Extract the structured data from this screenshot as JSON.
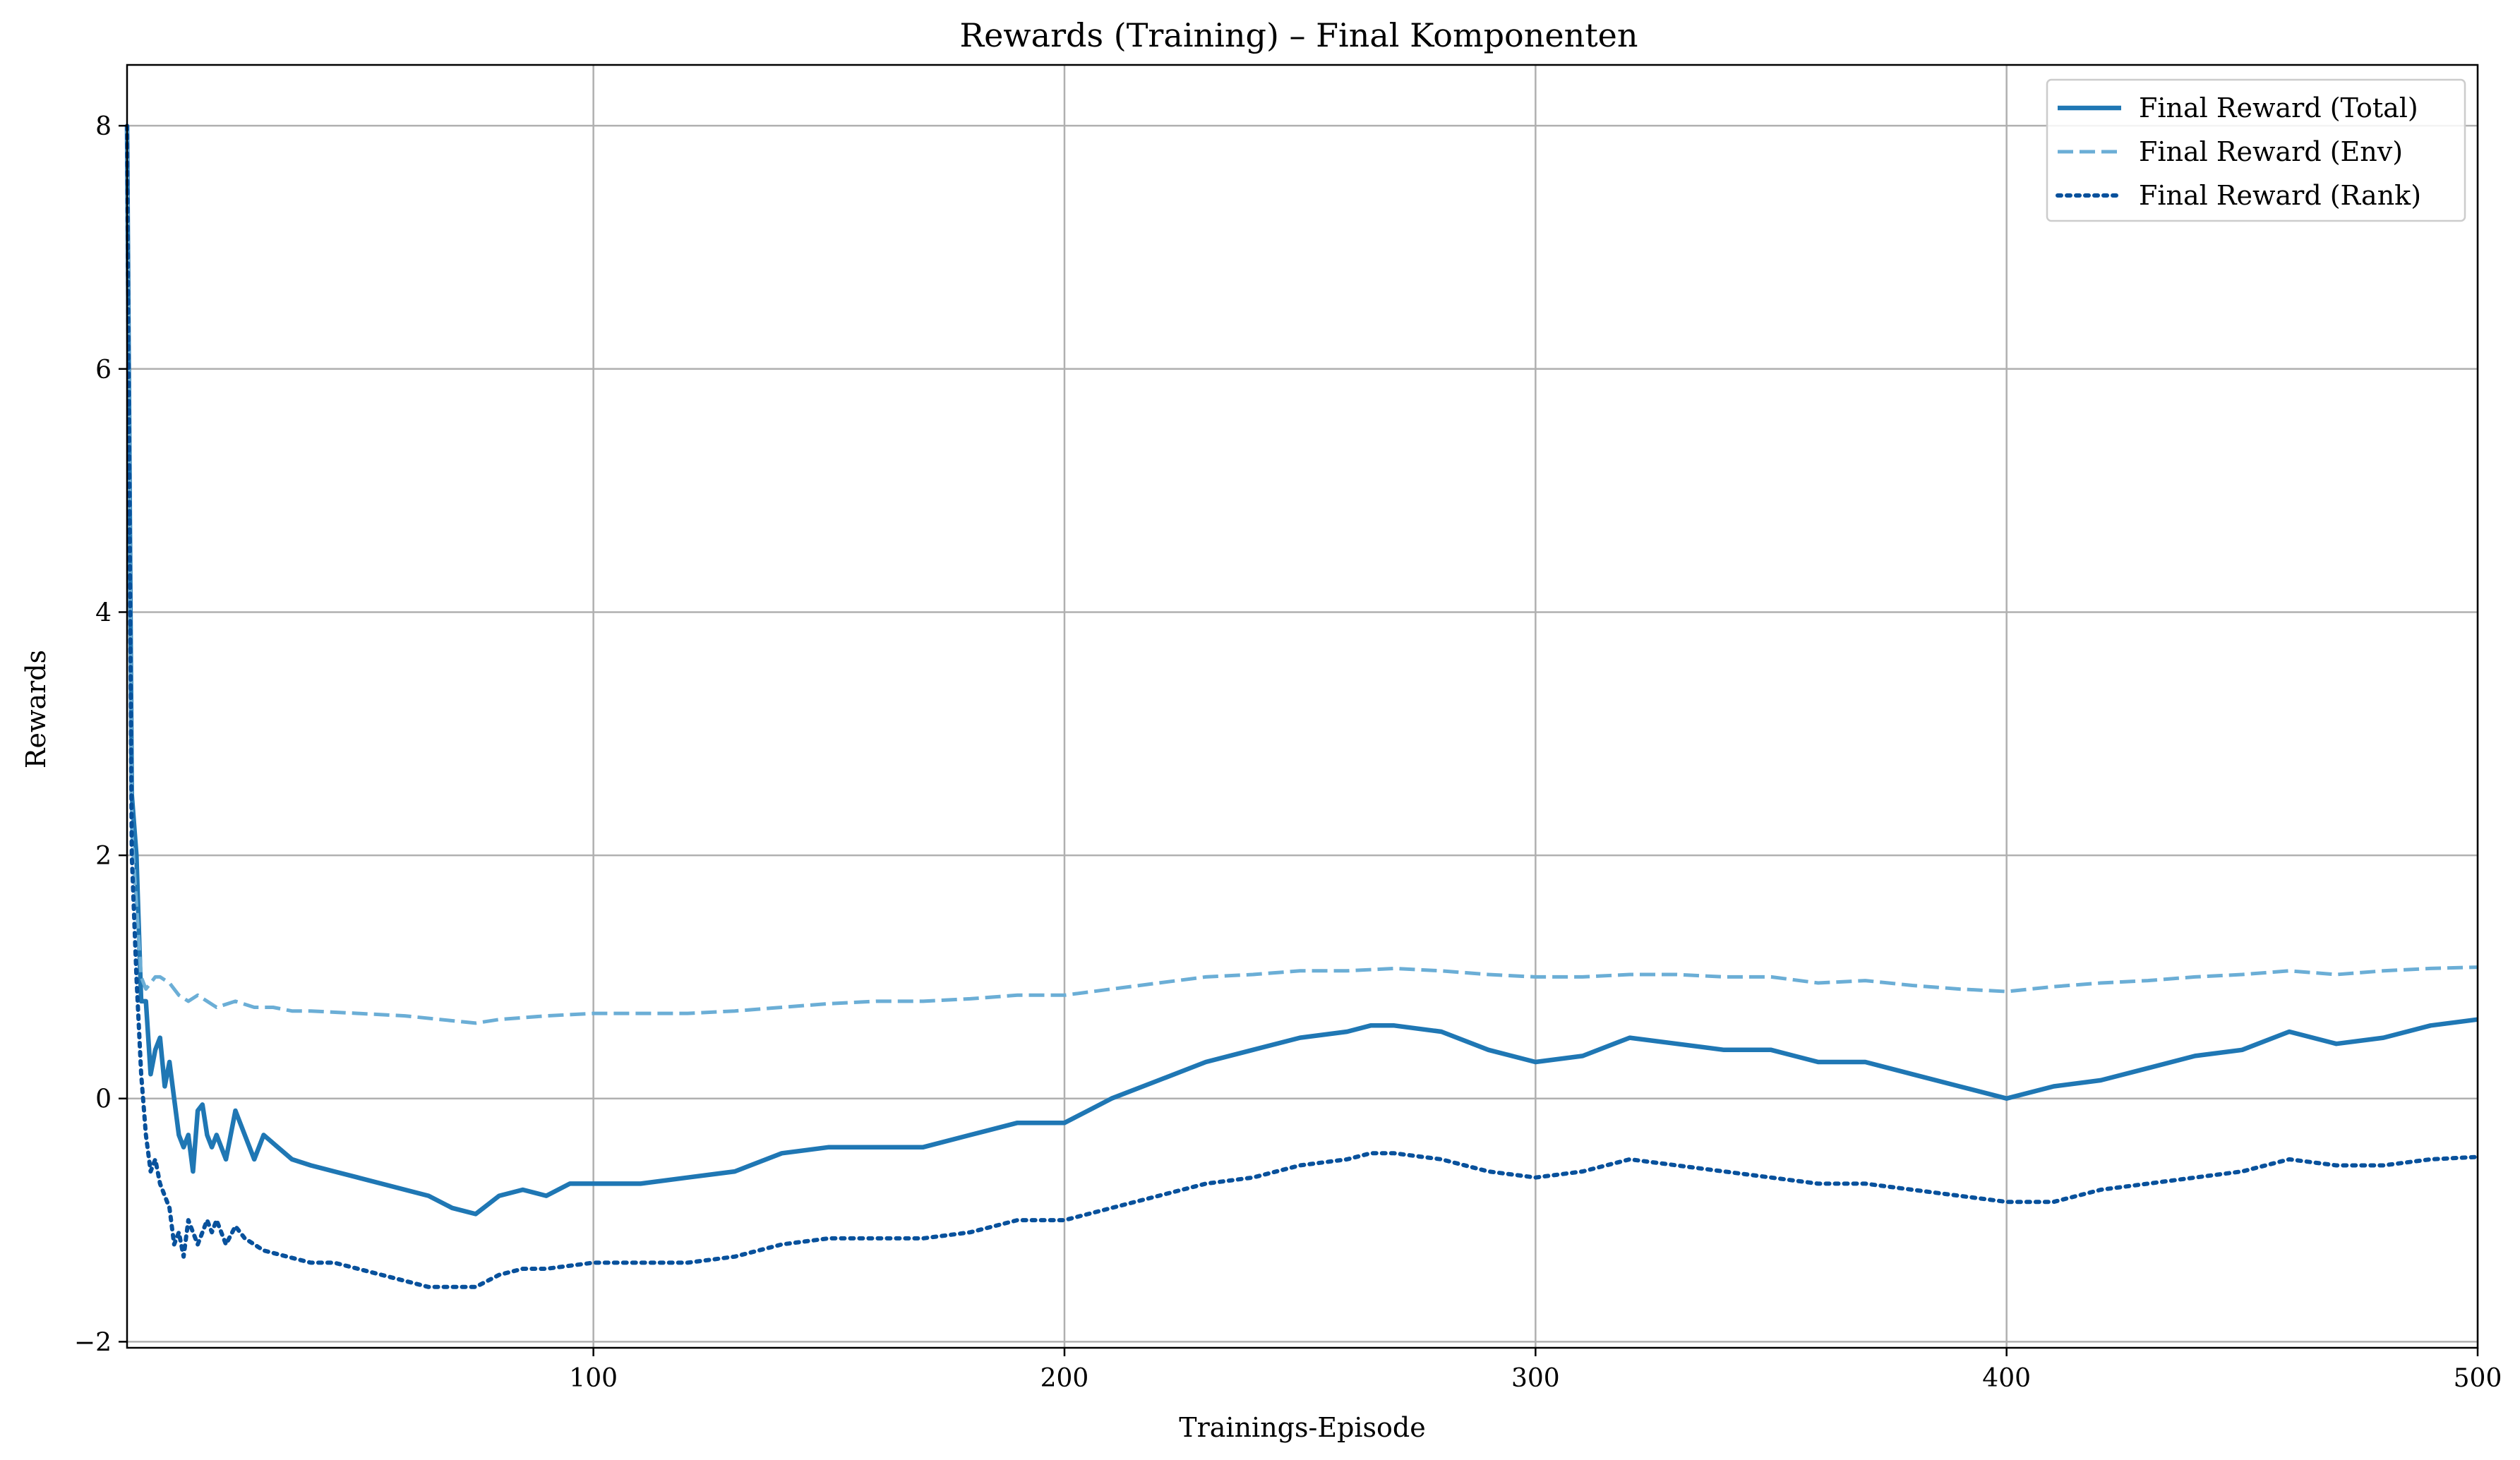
{
  "chart_data": {
    "type": "line",
    "title": "Rewards (Training) – Final Komponenten",
    "xlabel": "Trainings-Episode",
    "ylabel": "Rewards",
    "xlim": [
      1,
      500
    ],
    "ylim": [
      -2.05,
      8.5
    ],
    "xticks": [
      100,
      200,
      300,
      400,
      500
    ],
    "xtick_labels": [
      "100",
      "200",
      "300",
      "400",
      "500"
    ],
    "yticks": [
      -2,
      0,
      2,
      4,
      6,
      8
    ],
    "ytick_labels": [
      "−2",
      "0",
      "2",
      "4",
      "6",
      "8"
    ],
    "grid": true,
    "legend_position": "top-right",
    "series": [
      {
        "name": "Final Reward (Total)",
        "color": "#1f77b4",
        "style": "solid",
        "x": [
          1,
          2,
          3,
          4,
          5,
          6,
          7,
          8,
          9,
          10,
          11,
          12,
          13,
          14,
          15,
          16,
          17,
          18,
          19,
          20,
          22,
          24,
          26,
          28,
          30,
          33,
          36,
          40,
          45,
          50,
          55,
          60,
          65,
          70,
          75,
          80,
          85,
          90,
          95,
          100,
          110,
          120,
          130,
          140,
          150,
          160,
          170,
          180,
          190,
          200,
          205,
          210,
          220,
          230,
          240,
          250,
          260,
          265,
          270,
          280,
          290,
          300,
          310,
          320,
          330,
          340,
          350,
          360,
          370,
          380,
          390,
          400,
          410,
          420,
          430,
          440,
          450,
          460,
          470,
          480,
          490,
          500
        ],
        "y": [
          8.0,
          2.5,
          2.0,
          0.8,
          0.8,
          0.2,
          0.4,
          0.5,
          0.1,
          0.3,
          0.0,
          -0.3,
          -0.4,
          -0.3,
          -0.6,
          -0.1,
          -0.05,
          -0.3,
          -0.4,
          -0.3,
          -0.5,
          -0.1,
          -0.3,
          -0.5,
          -0.3,
          -0.4,
          -0.5,
          -0.55,
          -0.6,
          -0.65,
          -0.7,
          -0.75,
          -0.8,
          -0.9,
          -0.95,
          -0.8,
          -0.75,
          -0.8,
          -0.7,
          -0.7,
          -0.7,
          -0.65,
          -0.6,
          -0.45,
          -0.4,
          -0.4,
          -0.4,
          -0.3,
          -0.2,
          -0.2,
          -0.1,
          0.0,
          0.15,
          0.3,
          0.4,
          0.5,
          0.55,
          0.6,
          0.6,
          0.55,
          0.4,
          0.3,
          0.35,
          0.5,
          0.45,
          0.4,
          0.4,
          0.3,
          0.3,
          0.2,
          0.1,
          0.0,
          0.1,
          0.15,
          0.25,
          0.35,
          0.4,
          0.55,
          0.45,
          0.5,
          0.6,
          0.65
        ]
      },
      {
        "name": "Final Reward (Env)",
        "color": "#6baed6",
        "style": "dashed",
        "x": [
          1,
          2,
          3,
          4,
          5,
          6,
          7,
          8,
          10,
          12,
          14,
          16,
          18,
          20,
          24,
          28,
          32,
          36,
          40,
          50,
          60,
          70,
          75,
          80,
          90,
          100,
          110,
          120,
          130,
          140,
          150,
          160,
          170,
          180,
          190,
          200,
          210,
          220,
          230,
          240,
          250,
          260,
          270,
          280,
          290,
          300,
          310,
          320,
          330,
          340,
          350,
          360,
          370,
          380,
          390,
          400,
          410,
          420,
          430,
          440,
          450,
          460,
          470,
          480,
          490,
          500
        ],
        "y": [
          8.0,
          2.2,
          1.6,
          1.0,
          0.9,
          0.95,
          1.0,
          1.0,
          0.95,
          0.85,
          0.8,
          0.85,
          0.8,
          0.75,
          0.8,
          0.75,
          0.75,
          0.72,
          0.72,
          0.7,
          0.68,
          0.64,
          0.62,
          0.65,
          0.68,
          0.7,
          0.7,
          0.7,
          0.72,
          0.75,
          0.78,
          0.8,
          0.8,
          0.82,
          0.85,
          0.85,
          0.9,
          0.95,
          1.0,
          1.02,
          1.05,
          1.05,
          1.07,
          1.05,
          1.02,
          1.0,
          1.0,
          1.02,
          1.02,
          1.0,
          1.0,
          0.95,
          0.97,
          0.93,
          0.9,
          0.88,
          0.92,
          0.95,
          0.97,
          1.0,
          1.02,
          1.05,
          1.02,
          1.05,
          1.07,
          1.08
        ]
      },
      {
        "name": "Final Reward (Rank)",
        "color": "#08519c",
        "style": "dotted",
        "x": [
          1,
          2,
          3,
          4,
          5,
          6,
          7,
          8,
          9,
          10,
          11,
          12,
          13,
          14,
          15,
          16,
          17,
          18,
          19,
          20,
          22,
          24,
          26,
          28,
          30,
          35,
          40,
          45,
          50,
          55,
          60,
          65,
          70,
          75,
          80,
          85,
          90,
          100,
          110,
          120,
          130,
          140,
          150,
          160,
          170,
          180,
          190,
          200,
          210,
          220,
          230,
          240,
          250,
          260,
          265,
          270,
          280,
          290,
          300,
          310,
          320,
          330,
          340,
          350,
          360,
          370,
          380,
          390,
          400,
          410,
          420,
          430,
          440,
          450,
          460,
          470,
          480,
          490,
          500
        ],
        "y": [
          8.0,
          2.0,
          1.0,
          0.2,
          -0.3,
          -0.6,
          -0.5,
          -0.7,
          -0.8,
          -0.9,
          -1.2,
          -1.1,
          -1.3,
          -1.0,
          -1.1,
          -1.2,
          -1.1,
          -1.0,
          -1.1,
          -1.0,
          -1.2,
          -1.05,
          -1.15,
          -1.2,
          -1.25,
          -1.3,
          -1.35,
          -1.35,
          -1.4,
          -1.45,
          -1.5,
          -1.55,
          -1.55,
          -1.55,
          -1.45,
          -1.4,
          -1.4,
          -1.35,
          -1.35,
          -1.35,
          -1.3,
          -1.2,
          -1.15,
          -1.15,
          -1.15,
          -1.1,
          -1.0,
          -1.0,
          -0.9,
          -0.8,
          -0.7,
          -0.65,
          -0.55,
          -0.5,
          -0.45,
          -0.45,
          -0.5,
          -0.6,
          -0.65,
          -0.6,
          -0.5,
          -0.55,
          -0.6,
          -0.65,
          -0.7,
          -0.7,
          -0.75,
          -0.8,
          -0.85,
          -0.85,
          -0.75,
          -0.7,
          -0.65,
          -0.6,
          -0.5,
          -0.55,
          -0.55,
          -0.5,
          -0.48
        ]
      }
    ]
  }
}
